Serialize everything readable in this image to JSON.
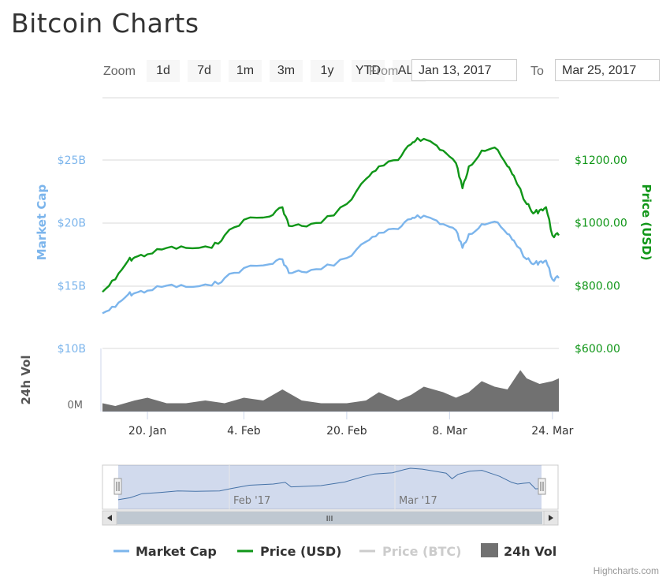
{
  "page": {
    "title": "Bitcoin Charts"
  },
  "toolbar": {
    "zoom_label": "Zoom",
    "buttons": [
      "1d",
      "7d",
      "1m",
      "3m",
      "1y",
      "YTD",
      "ALL"
    ],
    "from_label": "From",
    "from_value": "Jan 13, 2017",
    "to_label": "To",
    "to_value": "Mar 25, 2017"
  },
  "credit": "Highcharts.com",
  "chart_data": {
    "type": "line",
    "title": "",
    "x_range": [
      "2017-01-13",
      "2017-03-25"
    ],
    "x_ticks": [
      "20. Jan",
      "4. Feb",
      "20. Feb",
      "8. Mar",
      "24. Mar"
    ],
    "x_tick_dates": [
      "2017-01-20",
      "2017-02-04",
      "2017-02-20",
      "2017-03-08",
      "2017-03-24"
    ],
    "left_axis": {
      "label": "Market Cap",
      "ticks": [
        "$10B",
        "$15B",
        "$20B",
        "$25B"
      ],
      "range": [
        10,
        25
      ],
      "unit": "B",
      "color": "#7cb5ec"
    },
    "right_axis": {
      "label": "Price (USD)",
      "ticks": [
        "$600.00",
        "$800.00",
        "$1000.00",
        "$1200.00"
      ],
      "range": [
        600,
        1200
      ],
      "color": "#109618"
    },
    "volume_axis": {
      "label": "24h Vol",
      "ticks": [
        "0M"
      ]
    },
    "series": [
      {
        "name": "Price (USD)",
        "color": "#109618",
        "axis": "right",
        "x": [
          "2017-01-13",
          "2017-01-15",
          "2017-01-17",
          "2017-01-18",
          "2017-01-20",
          "2017-01-23",
          "2017-01-26",
          "2017-01-30",
          "2017-02-01",
          "2017-02-04",
          "2017-02-08",
          "2017-02-10",
          "2017-02-11",
          "2017-02-13",
          "2017-02-16",
          "2017-02-20",
          "2017-02-23",
          "2017-02-25",
          "2017-02-28",
          "2017-03-02",
          "2017-03-03",
          "2017-03-05",
          "2017-03-07",
          "2017-03-09",
          "2017-03-10",
          "2017-03-11",
          "2017-03-13",
          "2017-03-15",
          "2017-03-17",
          "2017-03-18",
          "2017-03-20",
          "2017-03-21",
          "2017-03-22",
          "2017-03-23",
          "2017-03-24",
          "2017-03-25"
        ],
        "values": [
          780,
          820,
          880,
          890,
          900,
          920,
          920,
          920,
          960,
          1010,
          1020,
          1050,
          990,
          990,
          1000,
          1060,
          1140,
          1180,
          1200,
          1250,
          1270,
          1260,
          1230,
          1190,
          1110,
          1180,
          1230,
          1240,
          1180,
          1150,
          1060,
          1030,
          1040,
          1050,
          960,
          960
        ]
      },
      {
        "name": "Market Cap",
        "color": "#7cb5ec",
        "axis": "left",
        "x": [
          "2017-01-13",
          "2017-01-15",
          "2017-01-17",
          "2017-01-18",
          "2017-01-20",
          "2017-01-23",
          "2017-01-26",
          "2017-01-30",
          "2017-02-01",
          "2017-02-04",
          "2017-02-08",
          "2017-02-10",
          "2017-02-11",
          "2017-02-13",
          "2017-02-16",
          "2017-02-20",
          "2017-02-23",
          "2017-02-25",
          "2017-02-28",
          "2017-03-02",
          "2017-03-03",
          "2017-03-05",
          "2017-03-07",
          "2017-03-09",
          "2017-03-10",
          "2017-03-11",
          "2017-03-13",
          "2017-03-15",
          "2017-03-17",
          "2017-03-18",
          "2017-03-20",
          "2017-03-21",
          "2017-03-22",
          "2017-03-23",
          "2017-03-24",
          "2017-03-25"
        ],
        "values": [
          12.8,
          13.3,
          14.3,
          14.4,
          14.6,
          15.0,
          14.9,
          15.0,
          15.6,
          16.4,
          16.7,
          17.1,
          16.0,
          16.1,
          16.3,
          17.2,
          18.5,
          19.2,
          19.5,
          20.3,
          20.6,
          20.4,
          19.9,
          19.4,
          18.0,
          19.1,
          19.9,
          20.1,
          19.1,
          18.6,
          17.1,
          16.7,
          16.9,
          17.0,
          15.5,
          15.6
        ]
      },
      {
        "name": "Price (BTC)",
        "color": "#cccccc",
        "visible": false,
        "values": []
      },
      {
        "name": "24h Vol",
        "color": "#717171",
        "type": "area",
        "axis": "volume",
        "x": [
          "2017-01-13",
          "2017-01-15",
          "2017-01-18",
          "2017-01-20",
          "2017-01-23",
          "2017-01-26",
          "2017-01-29",
          "2017-02-01",
          "2017-02-04",
          "2017-02-07",
          "2017-02-10",
          "2017-02-13",
          "2017-02-16",
          "2017-02-20",
          "2017-02-23",
          "2017-02-25",
          "2017-02-28",
          "2017-03-02",
          "2017-03-04",
          "2017-03-07",
          "2017-03-09",
          "2017-03-11",
          "2017-03-13",
          "2017-03-15",
          "2017-03-17",
          "2017-03-19",
          "2017-03-20",
          "2017-03-22",
          "2017-03-24",
          "2017-03-25"
        ],
        "values": [
          0.15,
          0.1,
          0.2,
          0.25,
          0.15,
          0.15,
          0.2,
          0.15,
          0.25,
          0.2,
          0.4,
          0.2,
          0.15,
          0.15,
          0.2,
          0.35,
          0.2,
          0.3,
          0.45,
          0.35,
          0.25,
          0.35,
          0.55,
          0.45,
          0.4,
          0.75,
          0.6,
          0.5,
          0.55,
          0.6
        ]
      }
    ],
    "navigator": {
      "labels": [
        "Feb '17",
        "Mar '17"
      ],
      "scrollbar_grip": "III"
    },
    "legend": {
      "placement": "bottom-center",
      "items": [
        "Market Cap",
        "Price (USD)",
        "Price (BTC)",
        "24h Vol"
      ]
    },
    "grid": true
  }
}
